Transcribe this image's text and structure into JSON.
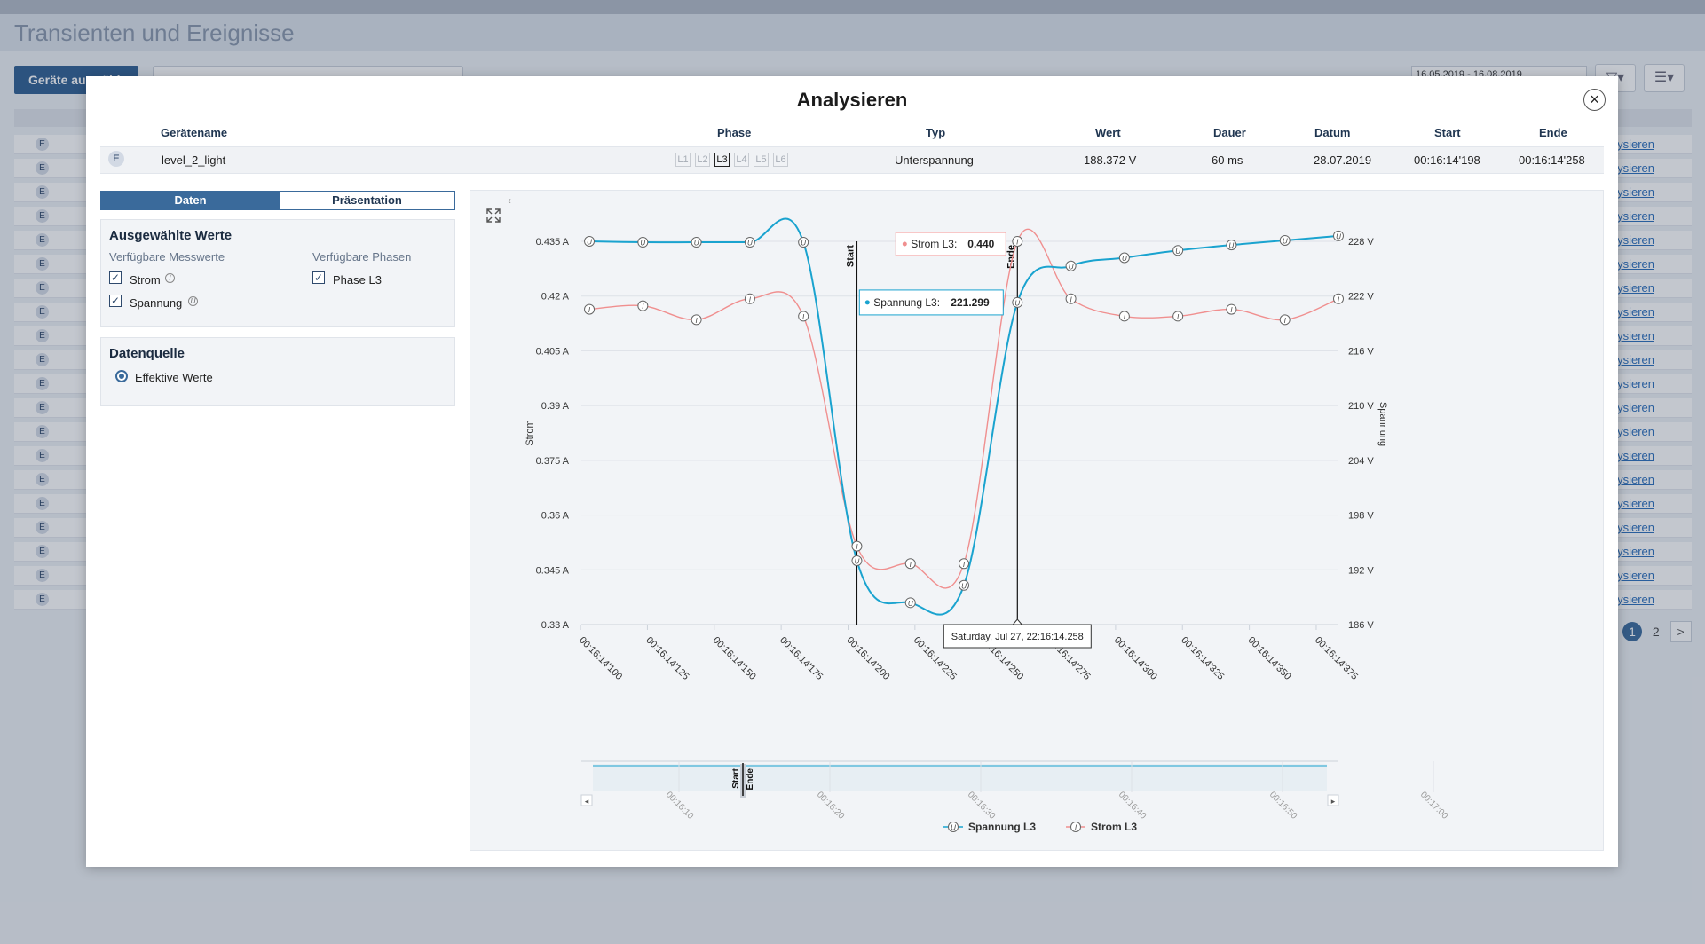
{
  "app": {
    "title": "Transienten und Ereignisse",
    "select_devices_button": "Geräte auswählen",
    "date_range": "16.05.2019 - 16.08.2019",
    "rows_link": "analysieren",
    "pager": {
      "pages": [
        "1",
        "2"
      ],
      "next": ">"
    }
  },
  "modal": {
    "title": "Analysieren",
    "close": "×",
    "columns": [
      "Gerätename",
      "Phase",
      "Typ",
      "Wert",
      "Dauer",
      "Datum",
      "Start",
      "Ende"
    ],
    "row": {
      "badge": "E",
      "device": "level_2_light",
      "phases": [
        "L1",
        "L2",
        "L3",
        "L4",
        "L5",
        "L6"
      ],
      "active_phase": "L3",
      "type": "Unterspannung",
      "value": "188.372 V",
      "duration": "60 ms",
      "date": "28.07.2019",
      "start": "00:16:14'198",
      "end": "00:16:14'258"
    }
  },
  "left": {
    "tabs": [
      "Daten",
      "Präsentation"
    ],
    "selected_values_title": "Ausgewählte Werte",
    "available_measurements": "Verfügbare Messwerte",
    "available_phases": "Verfügbare Phasen",
    "measurements": [
      {
        "label": "Strom",
        "checked": true,
        "info": "I"
      },
      {
        "label": "Spannung",
        "checked": true,
        "info": "U"
      }
    ],
    "phases": [
      {
        "label": "Phase L3",
        "checked": true
      }
    ],
    "datasource_title": "Datenquelle",
    "datasource_option": "Effektive Werte"
  },
  "chart_data": {
    "type": "line",
    "ylabel_left": "Strom",
    "ylabel_right": "Spannung",
    "y_left_ticks": [
      "0.435 A",
      "0.42 A",
      "0.405 A",
      "0.39 A",
      "0.375 A",
      "0.36 A",
      "0.345 A",
      "0.33 A"
    ],
    "y_right_ticks": [
      "228 V",
      "222 V",
      "216 V",
      "210 V",
      "204 V",
      "198 V",
      "192 V",
      "186 V"
    ],
    "ylim_left": [
      0.33,
      0.44
    ],
    "ylim_right": [
      186,
      228
    ],
    "x_ticks": [
      "00:16:14'100",
      "00:16:14'125",
      "00:16:14'150",
      "00:16:14'175",
      "00:16:14'200",
      "00:16:14'225",
      "00:16:14'250",
      "00:16:14'275",
      "00:16:14'300",
      "00:16:14'325",
      "00:16:14'350",
      "00:16:14'375"
    ],
    "x_ms": [
      95,
      115,
      135,
      155,
      175,
      195,
      215,
      235,
      255,
      275,
      295,
      315,
      335,
      355,
      375
    ],
    "markers": [
      {
        "label": "Start",
        "x_ms": 198
      },
      {
        "label": "Ende",
        "x_ms": 258
      }
    ],
    "series": [
      {
        "name": "Spannung L3",
        "color": "#1aa3cf",
        "icon": "U",
        "x_ms": [
          98,
          118,
          138,
          158,
          178,
          198,
          218,
          238,
          258,
          278,
          298,
          318,
          338,
          358,
          378
        ],
        "values": [
          228.0,
          227.9,
          227.9,
          227.9,
          227.9,
          193.0,
          188.4,
          190.3,
          221.3,
          225.3,
          226.2,
          227.0,
          227.6,
          228.1,
          228.6
        ]
      },
      {
        "name": "Strom L3",
        "color": "#f08f8f",
        "icon": "I",
        "x_ms": [
          98,
          118,
          138,
          158,
          178,
          198,
          218,
          238,
          258,
          278,
          298,
          318,
          338,
          358,
          378
        ],
        "values": [
          0.4205,
          0.4215,
          0.4175,
          0.4235,
          0.4185,
          0.3525,
          0.3475,
          0.3475,
          0.44,
          0.4235,
          0.4185,
          0.4185,
          0.4205,
          0.4175,
          0.4235
        ]
      }
    ],
    "tooltips": [
      {
        "series": "Strom L3",
        "value": "0.440"
      },
      {
        "series": "Spannung L3",
        "value": "221.299"
      }
    ],
    "crosshair_label": "Saturday, Jul 27, 22:16:14.258",
    "navigator": {
      "ticks": [
        "00:16:10",
        "00:16:20",
        "00:16:30",
        "00:16:40",
        "00:16:50",
        "00:17:00"
      ],
      "labels": [
        "Start",
        "Ende"
      ]
    },
    "legend": [
      "Spannung L3",
      "Strom L3"
    ]
  }
}
